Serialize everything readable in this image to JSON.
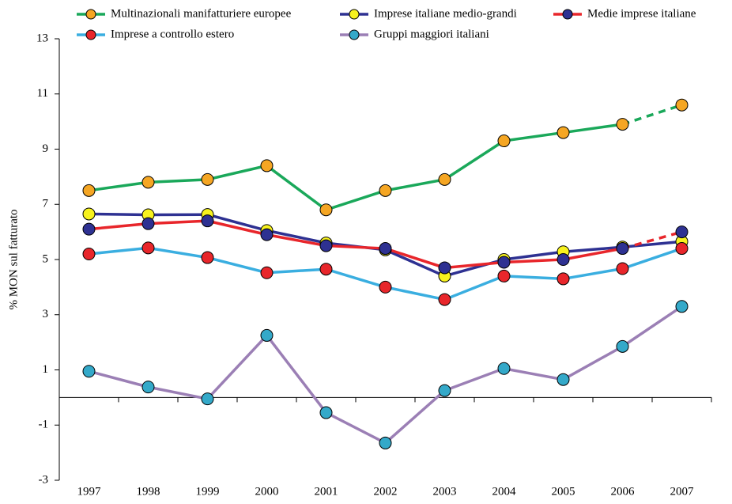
{
  "chart_data": {
    "type": "line",
    "ylabel": "% MON sul fatturato",
    "categories": [
      "1997",
      "1998",
      "1999",
      "2000",
      "2001",
      "2002",
      "2003",
      "2004",
      "2005",
      "2006",
      "2007"
    ],
    "ylim": [
      -3,
      13
    ],
    "yticks": [
      -3,
      -1,
      1,
      3,
      5,
      7,
      9,
      11,
      13
    ],
    "series": [
      {
        "name": "Multinazionali manifatturiere europee",
        "color": "#1aa85a",
        "marker_color": "#f5a623",
        "dashed_last_segment": true,
        "values": [
          7.5,
          7.8,
          7.9,
          8.4,
          6.8,
          7.5,
          7.9,
          9.3,
          9.6,
          9.9,
          10.6
        ]
      },
      {
        "name": "Imprese italiane medio-grandi",
        "color": "#2e3192",
        "marker_color": "#f7f21e",
        "dashed_last_segment": false,
        "values": [
          6.65,
          6.62,
          6.63,
          6.05,
          5.6,
          5.35,
          4.4,
          5.0,
          5.28,
          5.45,
          5.65
        ]
      },
      {
        "name": "Medie imprese italiane",
        "color": "#e8262b",
        "marker_color": "#2e3192",
        "dashed_last_segment": true,
        "values": [
          6.1,
          6.3,
          6.4,
          5.9,
          5.5,
          5.4,
          4.7,
          4.9,
          5.0,
          5.4,
          6.0
        ]
      },
      {
        "name": "Imprese a controllo estero",
        "color": "#3aaee0",
        "marker_color": "#e8262b",
        "dashed_last_segment": false,
        "values": [
          5.2,
          5.42,
          5.07,
          4.52,
          4.65,
          4.0,
          3.55,
          4.4,
          4.3,
          4.67,
          5.4
        ]
      },
      {
        "name": "Gruppi maggiori italiani",
        "color": "#9b7fb5",
        "marker_color": "#34a9c9",
        "dashed_last_segment": false,
        "values": [
          0.95,
          0.38,
          -0.05,
          2.25,
          -0.55,
          -1.65,
          0.25,
          1.05,
          0.65,
          1.85,
          3.3
        ]
      }
    ]
  }
}
